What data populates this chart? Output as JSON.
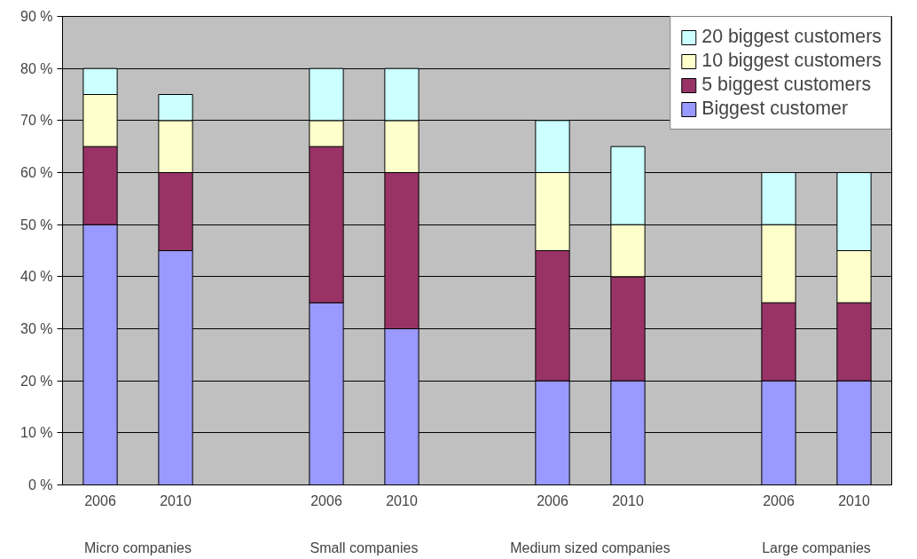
{
  "chart_data": {
    "type": "bar",
    "stacked": true,
    "categories": [
      "2006",
      "2010",
      null,
      "2006",
      "2010",
      null,
      "2006",
      "2010",
      null,
      "2006",
      "2010"
    ],
    "series": [
      {
        "name": "Biggest customer",
        "color": "#9999ff",
        "values": [
          50,
          45,
          null,
          35,
          30,
          null,
          20,
          20,
          null,
          20,
          20
        ]
      },
      {
        "name": "5 biggest customers",
        "color": "#993366",
        "values": [
          15,
          15,
          null,
          30,
          30,
          null,
          25,
          20,
          null,
          15,
          15
        ]
      },
      {
        "name": "10 biggest customers",
        "color": "#ffffcc",
        "values": [
          10,
          10,
          null,
          5,
          10,
          null,
          15,
          10,
          null,
          15,
          10
        ]
      },
      {
        "name": "20 biggest customers",
        "color": "#ccffff",
        "values": [
          5,
          5,
          null,
          10,
          10,
          null,
          10,
          15,
          null,
          10,
          15
        ]
      }
    ],
    "annotations": [
      "Micro companies",
      "Small companies",
      "Medium sized companies",
      "Large companies"
    ],
    "ylim": [
      0,
      90
    ],
    "yticks": [
      {
        "value": 0,
        "label": "0 %"
      },
      {
        "value": 10,
        "label": "10 %"
      },
      {
        "value": 20,
        "label": "20 %"
      },
      {
        "value": 30,
        "label": "30 %"
      },
      {
        "value": 40,
        "label": "40 %"
      },
      {
        "value": 50,
        "label": "50 %"
      },
      {
        "value": 60,
        "label": "60 %"
      },
      {
        "value": 70,
        "label": "70 %"
      },
      {
        "value": 80,
        "label": "80 %"
      },
      {
        "value": 90,
        "label": "90 %"
      }
    ],
    "grid": "y",
    "legend": "top right"
  }
}
